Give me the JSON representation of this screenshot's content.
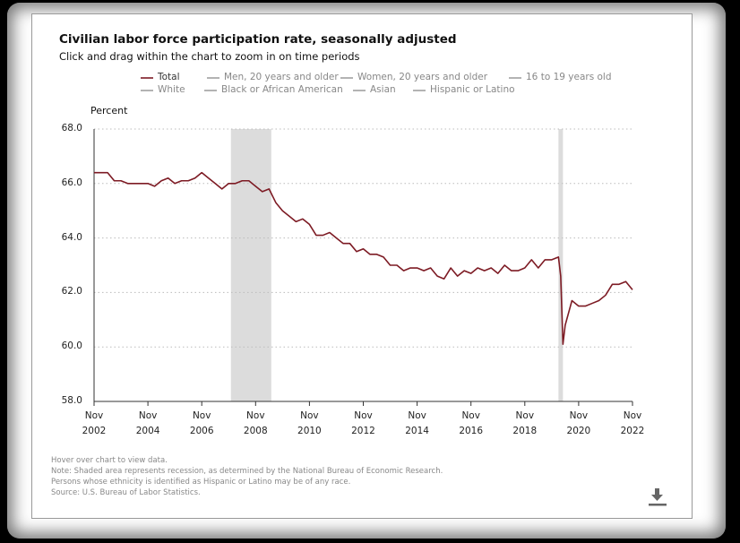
{
  "chart_data": {
    "type": "line",
    "title": "Civilian labor force participation rate, seasonally adjusted",
    "subtitle": "Click and drag within the chart to zoom in on time periods",
    "y_label": "Percent",
    "x": [
      "2002-11",
      "2003-02",
      "2003-05",
      "2003-08",
      "2003-11",
      "2004-02",
      "2004-05",
      "2004-08",
      "2004-11",
      "2005-02",
      "2005-05",
      "2005-08",
      "2005-11",
      "2006-02",
      "2006-05",
      "2006-08",
      "2006-11",
      "2007-02",
      "2007-05",
      "2007-08",
      "2007-11",
      "2008-02",
      "2008-05",
      "2008-08",
      "2008-11",
      "2009-02",
      "2009-05",
      "2009-08",
      "2009-11",
      "2010-02",
      "2010-05",
      "2010-08",
      "2010-11",
      "2011-02",
      "2011-05",
      "2011-08",
      "2011-11",
      "2012-02",
      "2012-05",
      "2012-08",
      "2012-11",
      "2013-02",
      "2013-05",
      "2013-08",
      "2013-11",
      "2014-02",
      "2014-05",
      "2014-08",
      "2014-11",
      "2015-02",
      "2015-05",
      "2015-08",
      "2015-11",
      "2016-02",
      "2016-05",
      "2016-08",
      "2016-11",
      "2017-02",
      "2017-05",
      "2017-08",
      "2017-11",
      "2018-02",
      "2018-05",
      "2018-08",
      "2018-11",
      "2019-02",
      "2019-05",
      "2019-08",
      "2019-11",
      "2020-02",
      "2020-03",
      "2020-04",
      "2020-05",
      "2020-08",
      "2020-11",
      "2021-02",
      "2021-05",
      "2021-08",
      "2021-11",
      "2022-02",
      "2022-05",
      "2022-08",
      "2022-11"
    ],
    "series": [
      {
        "name": "Total",
        "color": "#7d1b24",
        "values": [
          66.4,
          66.4,
          66.4,
          66.1,
          66.1,
          66.0,
          66.0,
          66.0,
          66.0,
          65.9,
          66.1,
          66.2,
          66.0,
          66.1,
          66.1,
          66.2,
          66.4,
          66.2,
          66.0,
          65.8,
          66.0,
          66.0,
          66.1,
          66.1,
          65.9,
          65.7,
          65.8,
          65.3,
          65.0,
          64.8,
          64.6,
          64.7,
          64.5,
          64.1,
          64.1,
          64.2,
          64.0,
          63.8,
          63.8,
          63.5,
          63.6,
          63.4,
          63.4,
          63.3,
          63.0,
          63.0,
          62.8,
          62.9,
          62.9,
          62.8,
          62.9,
          62.6,
          62.5,
          62.9,
          62.6,
          62.8,
          62.7,
          62.9,
          62.8,
          62.9,
          62.7,
          63.0,
          62.8,
          62.8,
          62.9,
          63.2,
          62.9,
          63.2,
          63.2,
          63.3,
          62.6,
          60.1,
          60.8,
          61.7,
          61.5,
          61.5,
          61.6,
          61.7,
          61.9,
          62.3,
          62.3,
          62.4,
          62.1
        ]
      }
    ],
    "hidden_series": [
      "Men, 20 years and older",
      "Women, 20 years and older",
      "16 to 19 years old",
      "White",
      "Black or African American",
      "Asian",
      "Hispanic or Latino"
    ],
    "hidden_color": "#a0a0a0",
    "recessions": [
      [
        "2007-12",
        "2009-06"
      ],
      [
        "2020-02",
        "2020-04"
      ]
    ],
    "recession_color": "#dcdcdc",
    "xlim": [
      "2002-11",
      "2022-11"
    ],
    "xticks": [
      {
        "value": "2002-11",
        "label": "Nov 2002"
      },
      {
        "value": "2004-11",
        "label": "Nov 2004"
      },
      {
        "value": "2006-11",
        "label": "Nov 2006"
      },
      {
        "value": "2008-11",
        "label": "Nov 2008"
      },
      {
        "value": "2010-11",
        "label": "Nov 2010"
      },
      {
        "value": "2012-11",
        "label": "Nov 2012"
      },
      {
        "value": "2014-11",
        "label": "Nov 2014"
      },
      {
        "value": "2016-11",
        "label": "Nov 2016"
      },
      {
        "value": "2018-11",
        "label": "Nov 2018"
      },
      {
        "value": "2020-11",
        "label": "Nov 2020"
      },
      {
        "value": "2022-11",
        "label": "Nov 2022"
      }
    ],
    "ylim": [
      58,
      68
    ],
    "yticks": [
      {
        "value": 58,
        "label": "58.0"
      },
      {
        "value": 60,
        "label": "60.0"
      },
      {
        "value": 62,
        "label": "62.0"
      },
      {
        "value": 64,
        "label": "64.0"
      },
      {
        "value": 66,
        "label": "66.0"
      },
      {
        "value": 68,
        "label": "68.0"
      }
    ],
    "grid": true,
    "notes": [
      "Hover over chart to view data.",
      "Note: Shaded area represents recession, as determined by the National Bureau of Economic Research.",
      "Persons whose ethnicity is identified as Hispanic or Latino may be of any race.",
      "Source: U.S. Bureau of Labor Statistics."
    ]
  }
}
